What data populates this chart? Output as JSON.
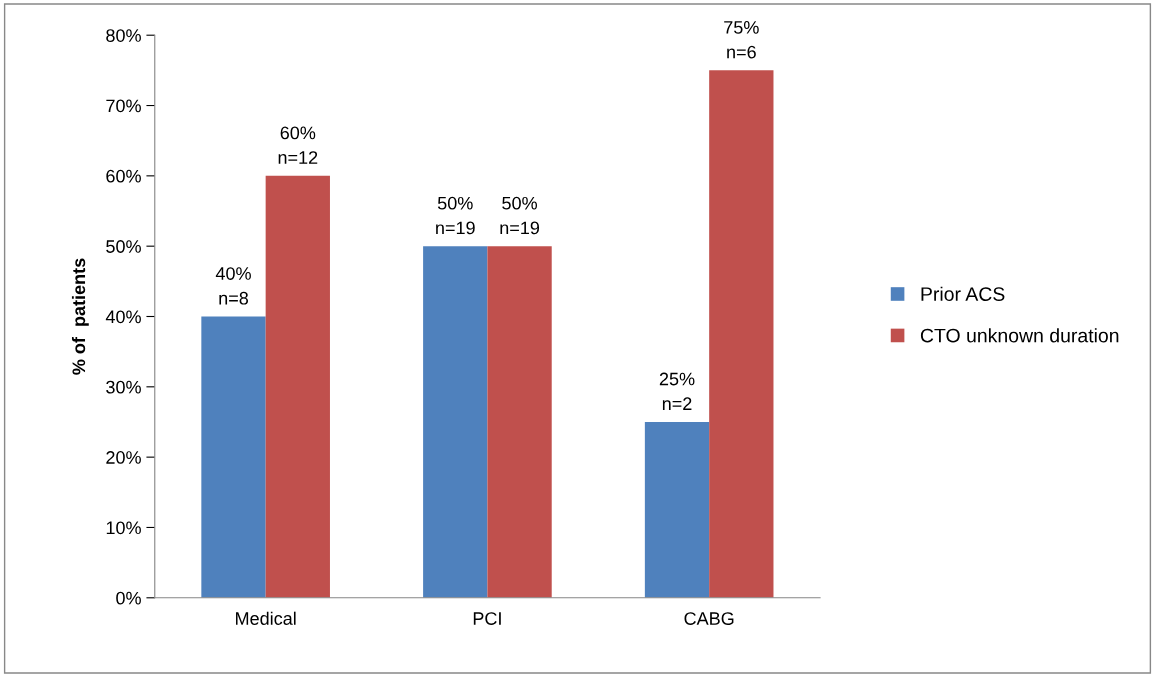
{
  "chart_data": {
    "type": "bar",
    "ylabel": "% of  patients",
    "categories": [
      "Medical",
      "PCI",
      "CABG"
    ],
    "series": [
      {
        "name": "Prior ACS",
        "color": "#4f81bd",
        "values": [
          40,
          50,
          25
        ],
        "value_labels": [
          "40%\nn=8",
          "50%\nn=19",
          "25%\nn=2"
        ]
      },
      {
        "name": "CTO unknown duration",
        "color": "#c0504d",
        "values": [
          60,
          50,
          75
        ],
        "value_labels": [
          "60%\nn=12",
          "50%\nn=19",
          "75%\nn=6"
        ]
      }
    ],
    "ylim": [
      0,
      80
    ],
    "yticks": [
      {
        "value": 0,
        "label": "0%"
      },
      {
        "value": 10,
        "label": "10%"
      },
      {
        "value": 20,
        "label": "20%"
      },
      {
        "value": 30,
        "label": "30%"
      },
      {
        "value": 40,
        "label": "40%"
      },
      {
        "value": 50,
        "label": "50%"
      },
      {
        "value": 60,
        "label": "60%"
      },
      {
        "value": 70,
        "label": "70%"
      },
      {
        "value": 80,
        "label": "80%"
      }
    ],
    "grid": false,
    "legend": "right"
  }
}
